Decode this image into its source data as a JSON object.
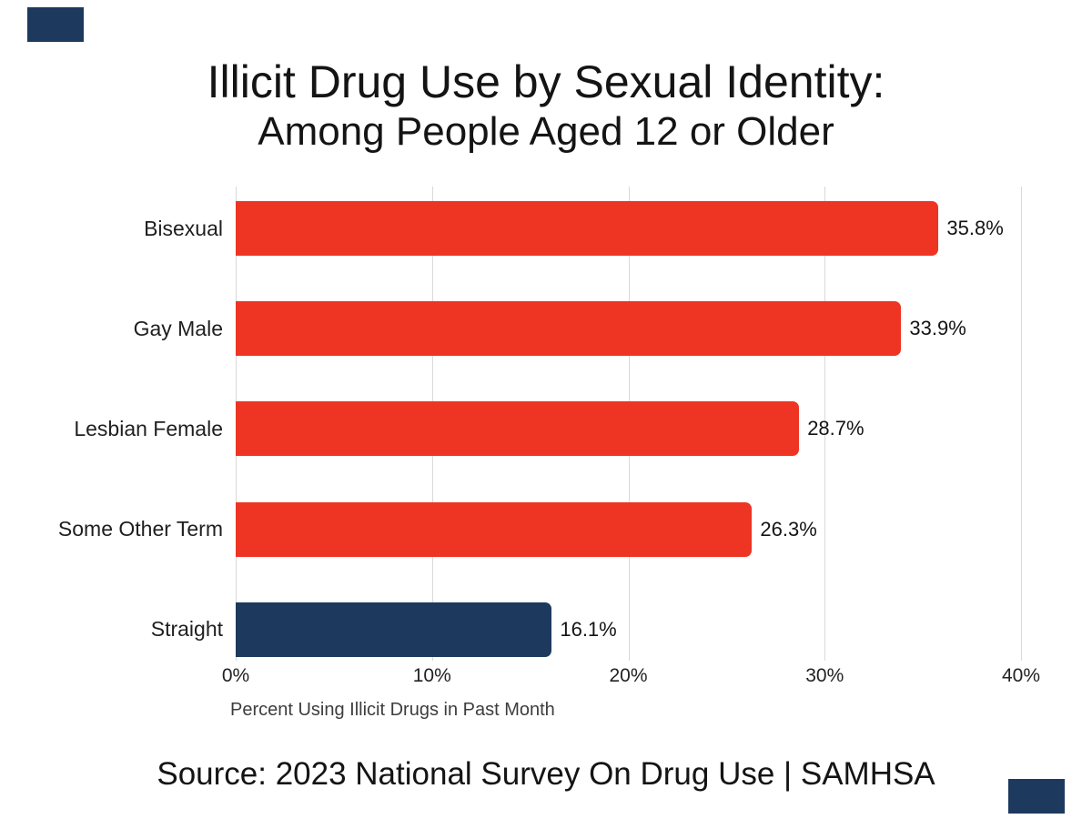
{
  "header": {
    "title_line1": "Illicit Drug Use by Sexual Identity:",
    "title_line2": "Among People Aged 12 or Older"
  },
  "chart_data": {
    "type": "bar",
    "orientation": "horizontal",
    "title": "Illicit Drug Use by Sexual Identity: Among People Aged 12 or Older",
    "categories": [
      "Bisexual",
      "Gay Male",
      "Lesbian Female",
      "Some Other Term",
      "Straight"
    ],
    "values": [
      35.8,
      33.9,
      28.7,
      26.3,
      16.1
    ],
    "value_labels": [
      "35.8%",
      "33.9%",
      "28.7%",
      "26.3%",
      "16.1%"
    ],
    "bar_colors": [
      "#ee3524",
      "#ee3524",
      "#ee3524",
      "#ee3524",
      "#1d3a5e"
    ],
    "xlabel": "Percent Using Illicit Drugs in Past Month",
    "ylabel": "",
    "xlim": [
      0,
      40
    ],
    "tick_values": [
      0,
      10,
      20,
      30,
      40
    ],
    "tick_labels": [
      "0%",
      "10%",
      "20%",
      "30%",
      "40%"
    ],
    "grid": "vertical-only",
    "legend": "none"
  },
  "footer": {
    "source_text": "Source: 2023 National Survey On Drug Use | SAMHSA"
  },
  "colors": {
    "bar_red": "#ee3524",
    "bar_navy": "#1d3a5e",
    "gridline": "#d9d9d9",
    "corner_accent": "#1d3a5e",
    "text": "#141414",
    "background": "#ffffff"
  }
}
